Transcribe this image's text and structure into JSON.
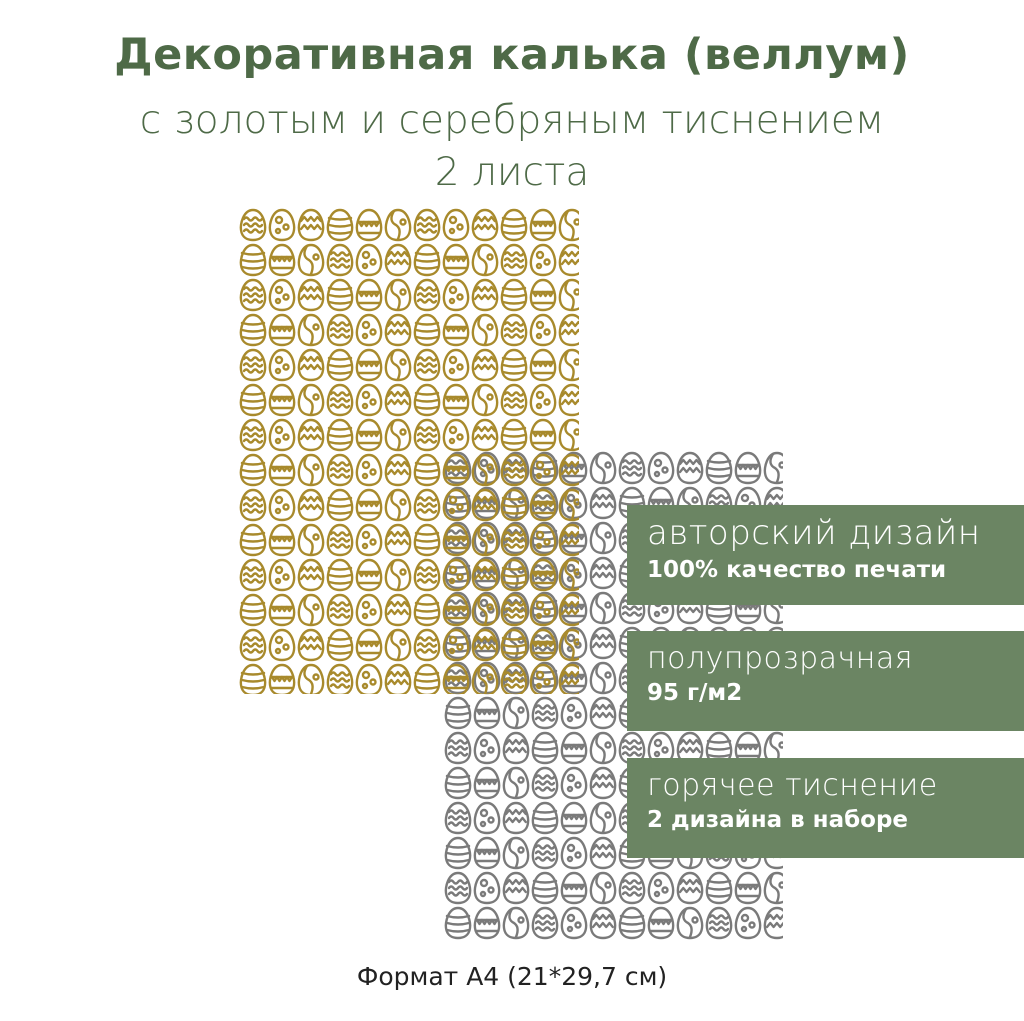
{
  "header": {
    "title": "Декоративная калька (веллум)",
    "subtitle": "с золотым и серебряным тиснением",
    "count": "2 листа"
  },
  "sheets": [
    {
      "name": "gold",
      "color": "#a88a2c",
      "pattern_icon": "easter-egg-icon"
    },
    {
      "name": "silver",
      "color": "#7a7a7a",
      "pattern_icon": "easter-egg-icon"
    }
  ],
  "badges": [
    {
      "line1": "авторский дизайн",
      "line2": "100% качество печати"
    },
    {
      "line1": "полупрозрачная",
      "line2": "95 г/м2"
    },
    {
      "line1": "горячее тиснение",
      "line2": "2 дизайна в наборе"
    }
  ],
  "badge_color": "#6b8563",
  "footer": "Формат А4 (21*29,7 см)"
}
